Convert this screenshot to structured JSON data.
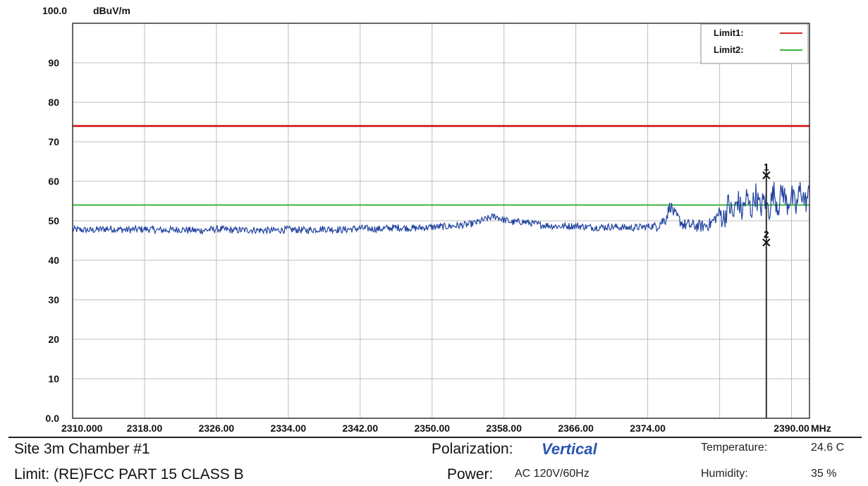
{
  "chart_data": {
    "type": "line",
    "ytop_label": "100.0",
    "yunit": "dBuV/m",
    "xunit": "MHz",
    "xlim": [
      2310,
      2392
    ],
    "ylim": [
      0,
      100
    ],
    "grid": true,
    "legend_position": "top-right",
    "y_ticks": [
      {
        "value": 90,
        "label": "90"
      },
      {
        "value": 80,
        "label": "80"
      },
      {
        "value": 70,
        "label": "70"
      },
      {
        "value": 60,
        "label": "60"
      },
      {
        "value": 50,
        "label": "50"
      },
      {
        "value": 40,
        "label": "40"
      },
      {
        "value": 30,
        "label": "30"
      },
      {
        "value": 20,
        "label": "20"
      },
      {
        "value": 10,
        "label": "10"
      },
      {
        "value": 0,
        "label": "0.0"
      }
    ],
    "x_ticks": [
      {
        "value": 2310,
        "label": "2310.000"
      },
      {
        "value": 2318,
        "label": "2318.00"
      },
      {
        "value": 2326,
        "label": "2326.00"
      },
      {
        "value": 2334,
        "label": "2334.00"
      },
      {
        "value": 2342,
        "label": "2342.00"
      },
      {
        "value": 2350,
        "label": "2350.00"
      },
      {
        "value": 2358,
        "label": "2358.00"
      },
      {
        "value": 2366,
        "label": "2366.00"
      },
      {
        "value": 2374,
        "label": "2374.00"
      },
      {
        "value": 2390,
        "label": "2390.00"
      }
    ],
    "extra_gridlines_x": [
      2382
    ],
    "limits": [
      {
        "name": "Limit1:",
        "value": 74,
        "color": "#d42b2b"
      },
      {
        "name": "Limit2:",
        "value": 54,
        "color": "#3cb43c"
      }
    ],
    "series": [
      {
        "color": "#2244a0",
        "x": [
          2310,
          2312,
          2314,
          2316,
          2318,
          2320,
          2322,
          2324,
          2326,
          2328,
          2330,
          2332,
          2334,
          2336,
          2338,
          2340,
          2342,
          2344,
          2346,
          2348,
          2350,
          2352,
          2354,
          2355,
          2356,
          2357,
          2358,
          2359,
          2360,
          2362,
          2364,
          2366,
          2368,
          2370,
          2372,
          2374,
          2375,
          2376,
          2376.5,
          2377,
          2378,
          2380,
          2381,
          2382,
          2382.5,
          2383,
          2383.5,
          2384,
          2384.5,
          2385,
          2385.5,
          2386,
          2386.5,
          2387,
          2387.5,
          2388,
          2388.5,
          2389,
          2389.5,
          2390,
          2390.5,
          2391,
          2391.5,
          2392
        ],
        "values": [
          47.8,
          47.6,
          48.0,
          47.7,
          47.9,
          47.6,
          47.8,
          47.5,
          47.9,
          47.6,
          47.7,
          47.5,
          47.8,
          47.6,
          48.0,
          47.7,
          48.1,
          47.9,
          48.3,
          48.1,
          48.4,
          48.6,
          49.0,
          49.6,
          50.4,
          51.2,
          50.2,
          49.6,
          49.8,
          49.0,
          48.6,
          48.7,
          48.3,
          48.5,
          48.2,
          48.5,
          48.8,
          50.5,
          54.0,
          51.5,
          49.0,
          48.6,
          49.2,
          52.0,
          50.5,
          54.5,
          51.0,
          55.5,
          52.0,
          56.0,
          52.5,
          57.0,
          53.0,
          55.5,
          52.5,
          57.5,
          53.5,
          58.0,
          54.0,
          56.5,
          53.0,
          58.5,
          54.5,
          57.0
        ]
      }
    ],
    "markers": [
      {
        "label": "1",
        "x": 2387.2,
        "y": 61.5
      },
      {
        "label": "2",
        "x": 2387.2,
        "y": 44.5
      }
    ],
    "marker_line_x": 2387.2
  },
  "info": {
    "site": "Site  3m Chamber #1",
    "limit": "Limit:  (RE)FCC PART 15 CLASS B",
    "polarization_label": "Polarization:",
    "polarization_value": "Vertical",
    "power_label": "Power:",
    "power_value": "AC 120V/60Hz",
    "temperature_label": "Temperature:",
    "temperature_value": "24.6 C",
    "humidity_label": "Humidity:",
    "humidity_value": "35 %"
  }
}
